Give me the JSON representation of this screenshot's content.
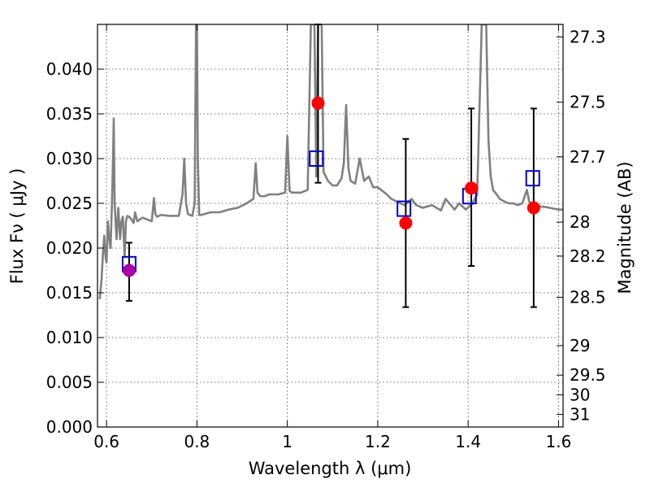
{
  "chart_data": {
    "type": "scatter",
    "title": "",
    "xlabel": "Wavelength  λ (μm)",
    "ylabel": "Flux  Fν  ( μJy )",
    "ylabel_right": "Magnitude (AB)",
    "xlim": [
      0.58,
      1.61
    ],
    "ylim": [
      0.0,
      0.045
    ],
    "grid": true,
    "x_ticks": [
      {
        "value": 0.6,
        "label": "0.6"
      },
      {
        "value": 0.8,
        "label": "0.8"
      },
      {
        "value": 1.0,
        "label": "1"
      },
      {
        "value": 1.2,
        "label": "1.2"
      },
      {
        "value": 1.4,
        "label": "1.4"
      },
      {
        "value": 1.6,
        "label": "1.6"
      }
    ],
    "y_ticks": [
      {
        "value": 0.0,
        "label": "0.000"
      },
      {
        "value": 0.005,
        "label": "0.005"
      },
      {
        "value": 0.01,
        "label": "0.010"
      },
      {
        "value": 0.015,
        "label": "0.015"
      },
      {
        "value": 0.02,
        "label": "0.020"
      },
      {
        "value": 0.025,
        "label": "0.025"
      },
      {
        "value": 0.03,
        "label": "0.030"
      },
      {
        "value": 0.035,
        "label": "0.035"
      },
      {
        "value": 0.04,
        "label": "0.040"
      }
    ],
    "right_ticks": [
      {
        "flux": 0.0436,
        "label": "27.3"
      },
      {
        "flux": 0.0363,
        "label": "27.5"
      },
      {
        "flux": 0.0302,
        "label": "27.7"
      },
      {
        "flux": 0.0229,
        "label": "28"
      },
      {
        "flux": 0.0191,
        "label": "28.2"
      },
      {
        "flux": 0.0145,
        "label": "28.5"
      },
      {
        "flux": 0.0091,
        "label": "29"
      },
      {
        "flux": 0.0058,
        "label": "29.5"
      },
      {
        "flux": 0.0036,
        "label": "30"
      },
      {
        "flux": 0.0014,
        "label": "31"
      }
    ],
    "spectrum": {
      "color": "#808080",
      "x": [
        0.585,
        0.589,
        0.592,
        0.595,
        0.598,
        0.6,
        0.603,
        0.606,
        0.609,
        0.612,
        0.614,
        0.616,
        0.618,
        0.622,
        0.626,
        0.63,
        0.633,
        0.636,
        0.64,
        0.643,
        0.646,
        0.65,
        0.655,
        0.66,
        0.663,
        0.668,
        0.68,
        0.69,
        0.7,
        0.705,
        0.708,
        0.712,
        0.72,
        0.74,
        0.76,
        0.768,
        0.772,
        0.776,
        0.78,
        0.79,
        0.795,
        0.798,
        0.8,
        0.802,
        0.805,
        0.81,
        0.83,
        0.85,
        0.87,
        0.89,
        0.91,
        0.925,
        0.93,
        0.934,
        0.94,
        0.95,
        0.96,
        0.98,
        0.995,
        1.0,
        1.005,
        1.01,
        1.03,
        1.045,
        1.052,
        1.056,
        1.06,
        1.064,
        1.068,
        1.072,
        1.076,
        1.08,
        1.09,
        1.1,
        1.11,
        1.12,
        1.125,
        1.13,
        1.135,
        1.14,
        1.15,
        1.16,
        1.17,
        1.18,
        1.19,
        1.2,
        1.21,
        1.22,
        1.23,
        1.25,
        1.26,
        1.275,
        1.285,
        1.3,
        1.32,
        1.34,
        1.35,
        1.37,
        1.38,
        1.395,
        1.41,
        1.42,
        1.43,
        1.435,
        1.44,
        1.445,
        1.45,
        1.455,
        1.46,
        1.47,
        1.48,
        1.49,
        1.5,
        1.51,
        1.52,
        1.53,
        1.535,
        1.54,
        1.55,
        1.57,
        1.59,
        1.6,
        1.61
      ],
      "y": [
        0.0143,
        0.0165,
        0.0193,
        0.0214,
        0.019,
        0.0184,
        0.023,
        0.021,
        0.02,
        0.025,
        0.029,
        0.0345,
        0.025,
        0.021,
        0.0245,
        0.021,
        0.023,
        0.0235,
        0.019,
        0.023,
        0.0236,
        0.0235,
        0.0232,
        0.0228,
        0.024,
        0.023,
        0.0234,
        0.0232,
        0.023,
        0.0256,
        0.0238,
        0.0235,
        0.0237,
        0.0236,
        0.0236,
        0.026,
        0.03,
        0.025,
        0.0238,
        0.0236,
        0.025,
        0.045,
        0.045,
        0.03,
        0.0237,
        0.0237,
        0.024,
        0.024,
        0.0243,
        0.0245,
        0.025,
        0.0255,
        0.0295,
        0.0262,
        0.0258,
        0.0258,
        0.026,
        0.026,
        0.0262,
        0.0325,
        0.0264,
        0.0262,
        0.0262,
        0.0265,
        0.045,
        0.045,
        0.045,
        0.028,
        0.045,
        0.045,
        0.045,
        0.0285,
        0.0275,
        0.027,
        0.027,
        0.0278,
        0.0295,
        0.036,
        0.029,
        0.0275,
        0.0272,
        0.03,
        0.0275,
        0.028,
        0.0268,
        0.0268,
        0.0264,
        0.026,
        0.0255,
        0.025,
        0.0248,
        0.0255,
        0.0248,
        0.0245,
        0.0248,
        0.0242,
        0.0255,
        0.0243,
        0.025,
        0.0243,
        0.025,
        0.026,
        0.045,
        0.045,
        0.045,
        0.032,
        0.028,
        0.0265,
        0.0262,
        0.0255,
        0.0252,
        0.025,
        0.025,
        0.0248,
        0.025,
        0.0265,
        0.0252,
        0.0248,
        0.0247,
        0.0246,
        0.0244,
        0.0243,
        0.0243
      ]
    },
    "series": [
      {
        "marker": "open-square",
        "color": "#0000cc",
        "points": [
          {
            "x": 0.65,
            "y": 0.0182
          },
          {
            "x": 1.064,
            "y": 0.03
          },
          {
            "x": 1.258,
            "y": 0.0244
          },
          {
            "x": 1.403,
            "y": 0.0258
          },
          {
            "x": 1.543,
            "y": 0.0278
          }
        ]
      },
      {
        "marker": "filled-circle",
        "color": "#ff0000",
        "points": [
          {
            "x": 1.068,
            "y": 0.0362,
            "ylo": 0.0273,
            "yhi": 0.045
          },
          {
            "x": 1.262,
            "y": 0.0228,
            "ylo": 0.0134,
            "yhi": 0.0322
          },
          {
            "x": 1.407,
            "y": 0.0267,
            "ylo": 0.018,
            "yhi": 0.0356
          },
          {
            "x": 1.545,
            "y": 0.0245,
            "ylo": 0.0134,
            "yhi": 0.0356
          }
        ]
      },
      {
        "marker": "filled-circle",
        "color": "#aa00aa",
        "points": [
          {
            "x": 0.65,
            "y": 0.0175,
            "ylo": 0.0141,
            "yhi": 0.0206
          }
        ]
      }
    ]
  }
}
